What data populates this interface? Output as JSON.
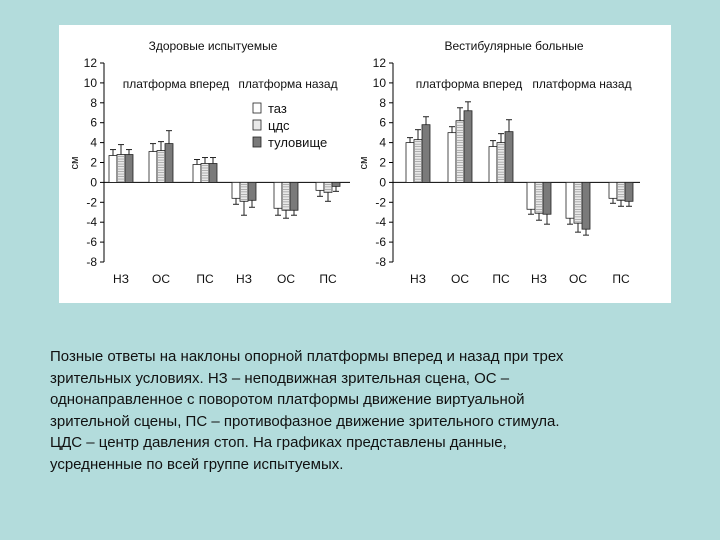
{
  "colors": {
    "background": "#b3dcdc",
    "panel": "#ffffff",
    "axis": "#000000",
    "bar_taz": "#ffffff",
    "bar_cds": "#e8e8e8",
    "bar_torso": "#7a7a7a"
  },
  "legend": {
    "items": [
      "таз",
      "цдс",
      "туловище"
    ]
  },
  "caption": {
    "lines": [
      "Позные ответы на наклоны опорной платформы вперед и назад при трех",
      "зрительных условиях. НЗ – неподвижная зрительная сцена, ОС –",
      "однонаправленное с поворотом платформы движение виртуальной",
      "зрительной сцены, ПС – противофазное движение зрительного стимула.",
      "ЦДС – центр давления стоп. На графиках представлены данные,",
      "усредненные по всей группе испытуемых."
    ]
  },
  "chart_data": [
    {
      "type": "bar",
      "title": "Здоровые испытуемые",
      "ylabel": "см",
      "ylim": [
        -8,
        12
      ],
      "yticks": [
        "12",
        "10",
        "8",
        "6",
        "4",
        "2",
        "0",
        "-2",
        "-4",
        "-6",
        "-8"
      ],
      "categories": [
        "НЗ",
        "ОС",
        "ПС",
        "НЗ",
        "ОС",
        "ПС"
      ],
      "group_labels": [
        "платформа вперед",
        "платформа назад"
      ],
      "series": [
        {
          "name": "таз",
          "values": [
            2.7,
            3.1,
            1.8,
            -1.6,
            -2.6,
            -0.8
          ],
          "errors": [
            0.6,
            0.8,
            0.5,
            0.6,
            0.7,
            0.6
          ]
        },
        {
          "name": "цдс",
          "values": [
            2.8,
            3.2,
            1.9,
            -1.9,
            -2.8,
            -1.0
          ],
          "errors": [
            1.0,
            0.9,
            0.6,
            1.4,
            0.8,
            0.9
          ]
        },
        {
          "name": "туловище",
          "values": [
            2.8,
            3.9,
            1.9,
            -1.8,
            -2.8,
            -0.4
          ],
          "errors": [
            0.5,
            1.3,
            0.6,
            0.7,
            0.5,
            0.5
          ]
        }
      ],
      "legend_position": "inside-top"
    },
    {
      "type": "bar",
      "title": "Вестибулярные больные",
      "ylabel": "см",
      "ylim": [
        -8,
        12
      ],
      "yticks": [
        "12",
        "10",
        "8",
        "6",
        "4",
        "2",
        "0",
        "-2",
        "-4",
        "-6",
        "-8"
      ],
      "categories": [
        "НЗ",
        "ОС",
        "ПС",
        "НЗ",
        "ОС",
        "ПС"
      ],
      "group_labels": [
        "платформа вперед",
        "платформа назад"
      ],
      "series": [
        {
          "name": "таз",
          "values": [
            4.0,
            5.0,
            3.6,
            -2.7,
            -3.6,
            -1.6
          ],
          "errors": [
            0.5,
            0.6,
            0.6,
            0.5,
            0.6,
            0.5
          ]
        },
        {
          "name": "цдс",
          "values": [
            4.3,
            6.2,
            4.0,
            -3.1,
            -4.1,
            -1.8
          ],
          "errors": [
            1.0,
            1.3,
            0.9,
            0.7,
            0.9,
            0.6
          ]
        },
        {
          "name": "туловище",
          "values": [
            5.8,
            7.2,
            5.1,
            -3.2,
            -4.7,
            -1.9
          ],
          "errors": [
            0.8,
            0.9,
            1.2,
            1.0,
            0.6,
            0.5
          ]
        }
      ]
    }
  ]
}
